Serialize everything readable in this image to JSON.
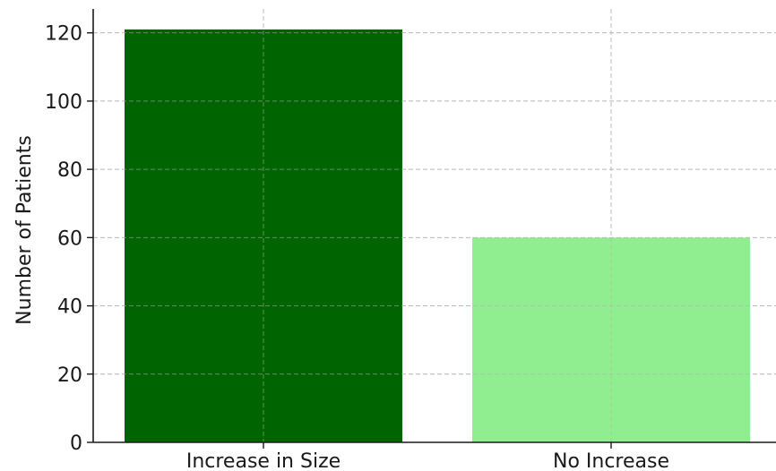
{
  "chart_data": {
    "type": "bar",
    "title": "",
    "xlabel": "",
    "ylabel": "Number of Patients",
    "categories": [
      "Increase in Size",
      "No Increase"
    ],
    "values": [
      121,
      60
    ],
    "bar_colors": [
      "#006400",
      "#90ee90"
    ],
    "ylim": [
      0,
      127
    ],
    "yticks": [
      0,
      20,
      40,
      60,
      80,
      100,
      120
    ],
    "grid": true,
    "grid_style": "dashed",
    "legend": "none"
  }
}
